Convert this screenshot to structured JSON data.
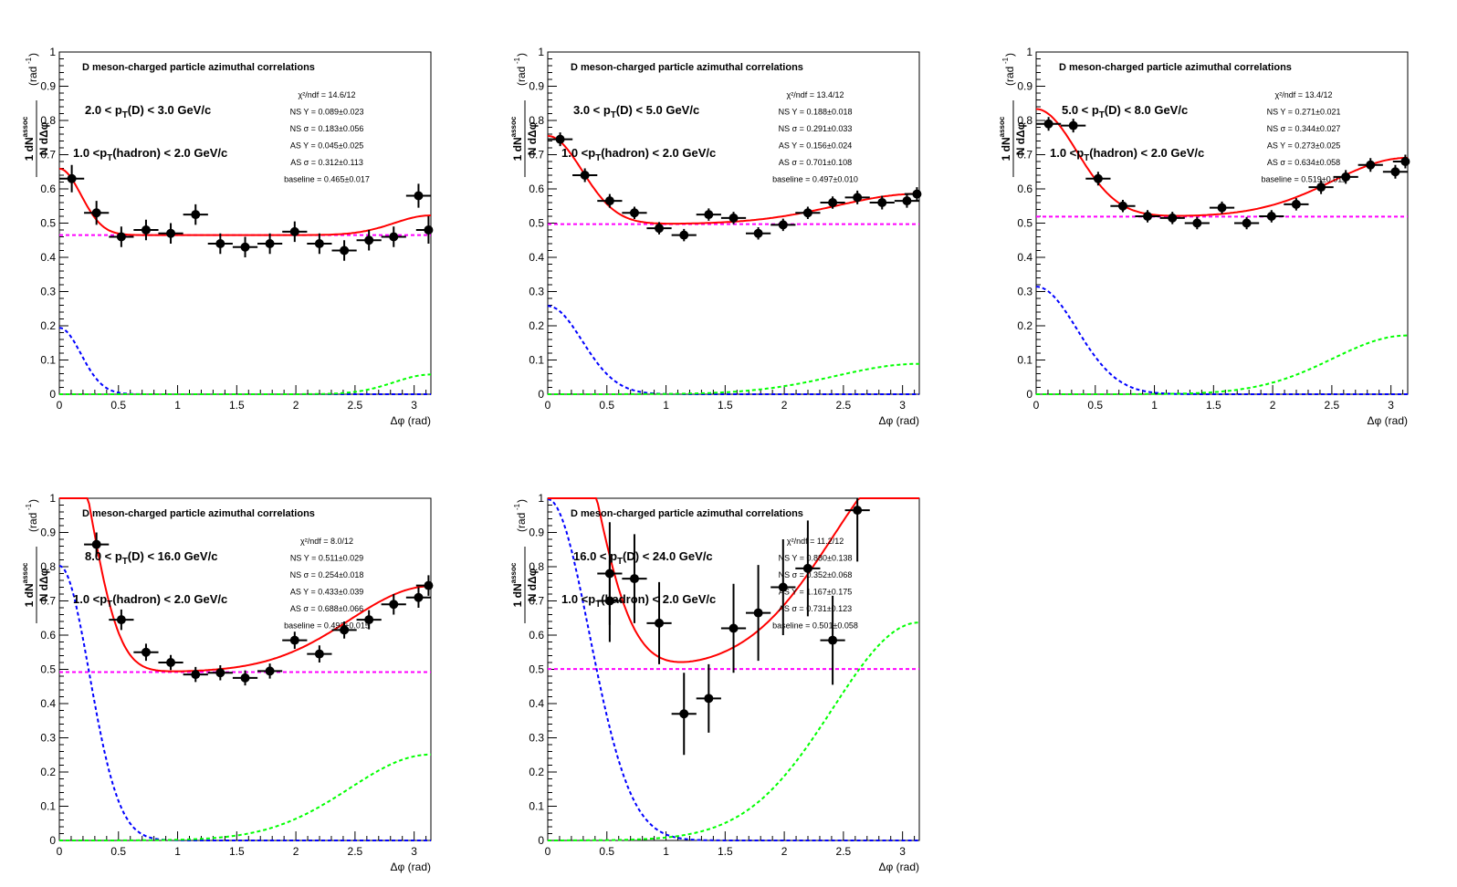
{
  "panel_title": "D meson-charged particle azimuthal correlations",
  "hadron_label": "1.0 <p_T(hadron) < 2.0 GeV/c",
  "y_axis_label": "1/N_D dN^assoc/dΔφ (rad^-1)",
  "x_axis_label": "Δφ (rad)",
  "colors": {
    "fit": "#ff0000",
    "near_side": "#0000ff",
    "away_side": "#00ff00",
    "baseline": "#ff00ff",
    "points": "#000000"
  },
  "chart_data": [
    {
      "type": "scatter",
      "title": "D meson-charged particle azimuthal correlations",
      "pt_label": "2.0 < p_T(D) < 3.0 GeV/c",
      "hadron_label": "1.0 <p_T(hadron) < 2.0 GeV/c",
      "xlabel": "Δφ (rad)",
      "ylabel": "1/N_D dN^assoc/dΔφ (rad^-1)",
      "xlim": [
        0,
        3.1416
      ],
      "ylim": [
        0,
        1
      ],
      "xticks": [
        "0",
        "0.5",
        "1",
        "1.5",
        "2",
        "2.5",
        "3"
      ],
      "yticks": [
        "0",
        "0.1",
        "0.2",
        "0.3",
        "0.4",
        "0.5",
        "0.6",
        "0.7",
        "0.8",
        "0.9",
        "1"
      ],
      "fit": {
        "chi2ndf": "14.6/12",
        "ns_y": "0.089±0.023",
        "ns_sigma": "0.183±0.056",
        "as_y": "0.045±0.025",
        "as_sigma": "0.312±0.113",
        "baseline": "0.465±0.017"
      },
      "fit_params": {
        "baseline": 0.465,
        "ns_y": 0.089,
        "ns_sigma": 0.183,
        "as_y": 0.045,
        "as_sigma": 0.312
      },
      "points": [
        {
          "x": 0.105,
          "y": 0.63,
          "ey": 0.04
        },
        {
          "x": 0.314,
          "y": 0.53,
          "ey": 0.035
        },
        {
          "x": 0.524,
          "y": 0.46,
          "ey": 0.03
        },
        {
          "x": 0.733,
          "y": 0.48,
          "ey": 0.03
        },
        {
          "x": 0.942,
          "y": 0.47,
          "ey": 0.03
        },
        {
          "x": 1.152,
          "y": 0.525,
          "ey": 0.03
        },
        {
          "x": 1.361,
          "y": 0.44,
          "ey": 0.03
        },
        {
          "x": 1.571,
          "y": 0.43,
          "ey": 0.03
        },
        {
          "x": 1.78,
          "y": 0.44,
          "ey": 0.03
        },
        {
          "x": 1.99,
          "y": 0.475,
          "ey": 0.03
        },
        {
          "x": 2.199,
          "y": 0.44,
          "ey": 0.03
        },
        {
          "x": 2.409,
          "y": 0.42,
          "ey": 0.03
        },
        {
          "x": 2.618,
          "y": 0.45,
          "ey": 0.03
        },
        {
          "x": 2.827,
          "y": 0.46,
          "ey": 0.03
        },
        {
          "x": 3.037,
          "y": 0.58,
          "ey": 0.035
        },
        {
          "x": 3.2,
          "y": 0.48,
          "ey": 0.04
        }
      ]
    },
    {
      "type": "scatter",
      "title": "D meson-charged particle azimuthal correlations",
      "pt_label": "3.0 < p_T(D) < 5.0 GeV/c",
      "hadron_label": "1.0 <p_T(hadron) < 2.0 GeV/c",
      "xlabel": "Δφ (rad)",
      "ylabel": "1/N_D dN^assoc/dΔφ (rad^-1)",
      "xlim": [
        0,
        3.1416
      ],
      "ylim": [
        0,
        1
      ],
      "xticks": [
        "0",
        "0.5",
        "1",
        "1.5",
        "2",
        "2.5",
        "3"
      ],
      "yticks": [
        "0",
        "0.1",
        "0.2",
        "0.3",
        "0.4",
        "0.5",
        "0.6",
        "0.7",
        "0.8",
        "0.9",
        "1"
      ],
      "fit": {
        "chi2ndf": "13.4/12",
        "ns_y": "0.188±0.018",
        "ns_sigma": "0.291±0.033",
        "as_y": "0.156±0.024",
        "as_sigma": "0.701±0.108",
        "baseline": "0.497±0.010"
      },
      "fit_params": {
        "baseline": 0.497,
        "ns_y": 0.188,
        "ns_sigma": 0.291,
        "as_y": 0.156,
        "as_sigma": 0.701
      },
      "points": [
        {
          "x": 0.105,
          "y": 0.745,
          "ey": 0.02
        },
        {
          "x": 0.314,
          "y": 0.64,
          "ey": 0.02
        },
        {
          "x": 0.524,
          "y": 0.565,
          "ey": 0.02
        },
        {
          "x": 0.733,
          "y": 0.53,
          "ey": 0.018
        },
        {
          "x": 0.942,
          "y": 0.485,
          "ey": 0.018
        },
        {
          "x": 1.152,
          "y": 0.465,
          "ey": 0.018
        },
        {
          "x": 1.361,
          "y": 0.525,
          "ey": 0.018
        },
        {
          "x": 1.571,
          "y": 0.515,
          "ey": 0.018
        },
        {
          "x": 1.78,
          "y": 0.47,
          "ey": 0.018
        },
        {
          "x": 1.99,
          "y": 0.495,
          "ey": 0.018
        },
        {
          "x": 2.199,
          "y": 0.53,
          "ey": 0.018
        },
        {
          "x": 2.409,
          "y": 0.56,
          "ey": 0.018
        },
        {
          "x": 2.618,
          "y": 0.575,
          "ey": 0.02
        },
        {
          "x": 2.827,
          "y": 0.56,
          "ey": 0.02
        },
        {
          "x": 3.037,
          "y": 0.565,
          "ey": 0.02
        },
        {
          "x": 3.2,
          "y": 0.585,
          "ey": 0.02
        }
      ]
    },
    {
      "type": "scatter",
      "title": "D meson-charged particle azimuthal correlations",
      "pt_label": "5.0 < p_T(D) < 8.0 GeV/c",
      "hadron_label": "1.0 <p_T(hadron) < 2.0 GeV/c",
      "xlabel": "Δφ (rad)",
      "ylabel": "1/N_D dN^assoc/dΔφ (rad^-1)",
      "xlim": [
        0,
        3.1416
      ],
      "ylim": [
        0,
        1
      ],
      "xticks": [
        "0",
        "0.5",
        "1",
        "1.5",
        "2",
        "2.5",
        "3"
      ],
      "yticks": [
        "0",
        "0.1",
        "0.2",
        "0.3",
        "0.4",
        "0.5",
        "0.6",
        "0.7",
        "0.8",
        "0.9",
        "1"
      ],
      "fit": {
        "chi2ndf": "13.4/12",
        "ns_y": "0.271±0.021",
        "ns_sigma": "0.344±0.027",
        "as_y": "0.273±0.025",
        "as_sigma": "0.634±0.058",
        "baseline": "0.519±0.011"
      },
      "fit_params": {
        "baseline": 0.519,
        "ns_y": 0.271,
        "ns_sigma": 0.344,
        "as_y": 0.273,
        "as_sigma": 0.634
      },
      "points": [
        {
          "x": 0.105,
          "y": 0.79,
          "ey": 0.02
        },
        {
          "x": 0.314,
          "y": 0.785,
          "ey": 0.02
        },
        {
          "x": 0.524,
          "y": 0.63,
          "ey": 0.02
        },
        {
          "x": 0.733,
          "y": 0.55,
          "ey": 0.018
        },
        {
          "x": 0.942,
          "y": 0.52,
          "ey": 0.018
        },
        {
          "x": 1.152,
          "y": 0.515,
          "ey": 0.018
        },
        {
          "x": 1.361,
          "y": 0.5,
          "ey": 0.018
        },
        {
          "x": 1.571,
          "y": 0.545,
          "ey": 0.018
        },
        {
          "x": 1.78,
          "y": 0.5,
          "ey": 0.018
        },
        {
          "x": 1.99,
          "y": 0.52,
          "ey": 0.018
        },
        {
          "x": 2.199,
          "y": 0.555,
          "ey": 0.018
        },
        {
          "x": 2.409,
          "y": 0.605,
          "ey": 0.02
        },
        {
          "x": 2.618,
          "y": 0.635,
          "ey": 0.02
        },
        {
          "x": 2.827,
          "y": 0.67,
          "ey": 0.02
        },
        {
          "x": 3.037,
          "y": 0.65,
          "ey": 0.02
        },
        {
          "x": 3.2,
          "y": 0.68,
          "ey": 0.02
        }
      ]
    },
    {
      "type": "scatter",
      "title": "D meson-charged particle azimuthal correlations",
      "pt_label": "8.0 < p_T(D) < 16.0 GeV/c",
      "hadron_label": "1.0 <p_T(hadron) < 2.0 GeV/c",
      "xlabel": "Δφ (rad)",
      "ylabel": "1/N_D dN^assoc/dΔφ (rad^-1)",
      "xlim": [
        0,
        3.1416
      ],
      "ylim": [
        0,
        1
      ],
      "xticks": [
        "0",
        "0.5",
        "1",
        "1.5",
        "2",
        "2.5",
        "3"
      ],
      "yticks": [
        "0",
        "0.1",
        "0.2",
        "0.3",
        "0.4",
        "0.5",
        "0.6",
        "0.7",
        "0.8",
        "0.9",
        "1"
      ],
      "fit": {
        "chi2ndf": "8.0/12",
        "ns_y": "0.511±0.029",
        "ns_sigma": "0.254±0.018",
        "as_y": "0.433±0.039",
        "as_sigma": "0.688±0.066",
        "baseline": "0.492±0.015"
      },
      "fit_params": {
        "baseline": 0.492,
        "ns_y": 0.511,
        "ns_sigma": 0.254,
        "as_y": 0.433,
        "as_sigma": 0.688
      },
      "points": [
        {
          "x": 0.314,
          "y": 0.865,
          "ey": 0.035
        },
        {
          "x": 0.524,
          "y": 0.645,
          "ey": 0.03
        },
        {
          "x": 0.733,
          "y": 0.55,
          "ey": 0.025
        },
        {
          "x": 0.942,
          "y": 0.52,
          "ey": 0.022
        },
        {
          "x": 1.152,
          "y": 0.485,
          "ey": 0.022
        },
        {
          "x": 1.361,
          "y": 0.49,
          "ey": 0.022
        },
        {
          "x": 1.571,
          "y": 0.475,
          "ey": 0.022
        },
        {
          "x": 1.78,
          "y": 0.495,
          "ey": 0.022
        },
        {
          "x": 1.99,
          "y": 0.585,
          "ey": 0.025
        },
        {
          "x": 2.199,
          "y": 0.545,
          "ey": 0.025
        },
        {
          "x": 2.409,
          "y": 0.615,
          "ey": 0.025
        },
        {
          "x": 2.618,
          "y": 0.645,
          "ey": 0.028
        },
        {
          "x": 2.827,
          "y": 0.69,
          "ey": 0.03
        },
        {
          "x": 3.037,
          "y": 0.71,
          "ey": 0.03
        },
        {
          "x": 3.2,
          "y": 0.745,
          "ey": 0.03
        }
      ]
    },
    {
      "type": "scatter",
      "title": "D meson-charged particle azimuthal correlations",
      "pt_label": "16.0 < p_T(D) < 24.0 GeV/c",
      "hadron_label": "1.0 <p_T(hadron) < 2.0 GeV/c",
      "xlabel": "Δφ (rad)",
      "ylabel": "1/N_D dN^assoc/dΔφ (rad^-1)",
      "xlim": [
        0,
        3.1416
      ],
      "ylim": [
        0,
        1
      ],
      "xticks": [
        "0",
        "0.5",
        "1",
        "1.5",
        "2",
        "2.5",
        "3"
      ],
      "yticks": [
        "0",
        "0.1",
        "0.2",
        "0.3",
        "0.4",
        "0.5",
        "0.6",
        "0.7",
        "0.8",
        "0.9",
        "1"
      ],
      "fit": {
        "chi2ndf": "11.2/12",
        "ns_y": "0.880±0.138",
        "ns_sigma": "0.352±0.068",
        "as_y": "1.167±0.175",
        "as_sigma": "0.731±0.123",
        "baseline": "0.501±0.058"
      },
      "fit_params": {
        "baseline": 0.501,
        "ns_y": 0.88,
        "ns_sigma": 0.352,
        "as_y": 1.167,
        "as_sigma": 0.731
      },
      "points": [
        {
          "x": 0.524,
          "y": 0.78,
          "ey": 0.15
        },
        {
          "x": 0.524,
          "y": 0.7,
          "ey": 0.12
        },
        {
          "x": 0.733,
          "y": 0.765,
          "ey": 0.13
        },
        {
          "x": 0.942,
          "y": 0.635,
          "ey": 0.12
        },
        {
          "x": 1.152,
          "y": 0.37,
          "ey": 0.12
        },
        {
          "x": 1.361,
          "y": 0.415,
          "ey": 0.1
        },
        {
          "x": 1.571,
          "y": 0.62,
          "ey": 0.13
        },
        {
          "x": 1.78,
          "y": 0.665,
          "ey": 0.14
        },
        {
          "x": 1.99,
          "y": 0.74,
          "ey": 0.14
        },
        {
          "x": 2.199,
          "y": 0.795,
          "ey": 0.14
        },
        {
          "x": 2.409,
          "y": 0.585,
          "ey": 0.13
        },
        {
          "x": 2.618,
          "y": 0.965,
          "ey": 0.15
        }
      ]
    }
  ]
}
